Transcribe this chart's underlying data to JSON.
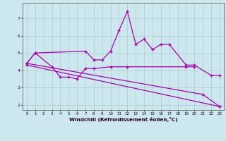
{
  "background_color": "#cce8ee",
  "grid_color": "#aacccc",
  "line_color": "#aa00aa",
  "xlim": [
    -0.5,
    23.5
  ],
  "ylim": [
    1.7,
    7.9
  ],
  "yticks": [
    2,
    3,
    4,
    5,
    6,
    7
  ],
  "xticks": [
    0,
    1,
    2,
    3,
    4,
    5,
    6,
    7,
    8,
    9,
    10,
    11,
    12,
    13,
    14,
    15,
    16,
    17,
    18,
    19,
    20,
    21,
    22,
    23
  ],
  "xlabel": "Windchill (Refroidissement éolien,°C)",
  "series_spiky": {
    "x": [
      0,
      1,
      7,
      8,
      9,
      10,
      11,
      12,
      13,
      14,
      15,
      16,
      17,
      19,
      20,
      22,
      23
    ],
    "y": [
      4.4,
      5.0,
      5.1,
      4.6,
      4.6,
      5.1,
      6.3,
      7.4,
      5.5,
      5.8,
      5.2,
      5.5,
      5.5,
      4.3,
      4.3,
      3.7,
      3.7
    ]
  },
  "series_flat": {
    "x": [
      0,
      1,
      3,
      4,
      5,
      6,
      7,
      8,
      10,
      12,
      19,
      20
    ],
    "y": [
      4.4,
      5.0,
      4.2,
      3.6,
      3.6,
      3.5,
      4.1,
      4.1,
      4.2,
      4.2,
      4.2,
      4.2
    ]
  },
  "series_diag1": {
    "x": [
      0,
      21,
      23
    ],
    "y": [
      4.4,
      2.6,
      1.9
    ]
  },
  "series_diag2": {
    "x": [
      0,
      23
    ],
    "y": [
      4.3,
      1.9
    ]
  }
}
